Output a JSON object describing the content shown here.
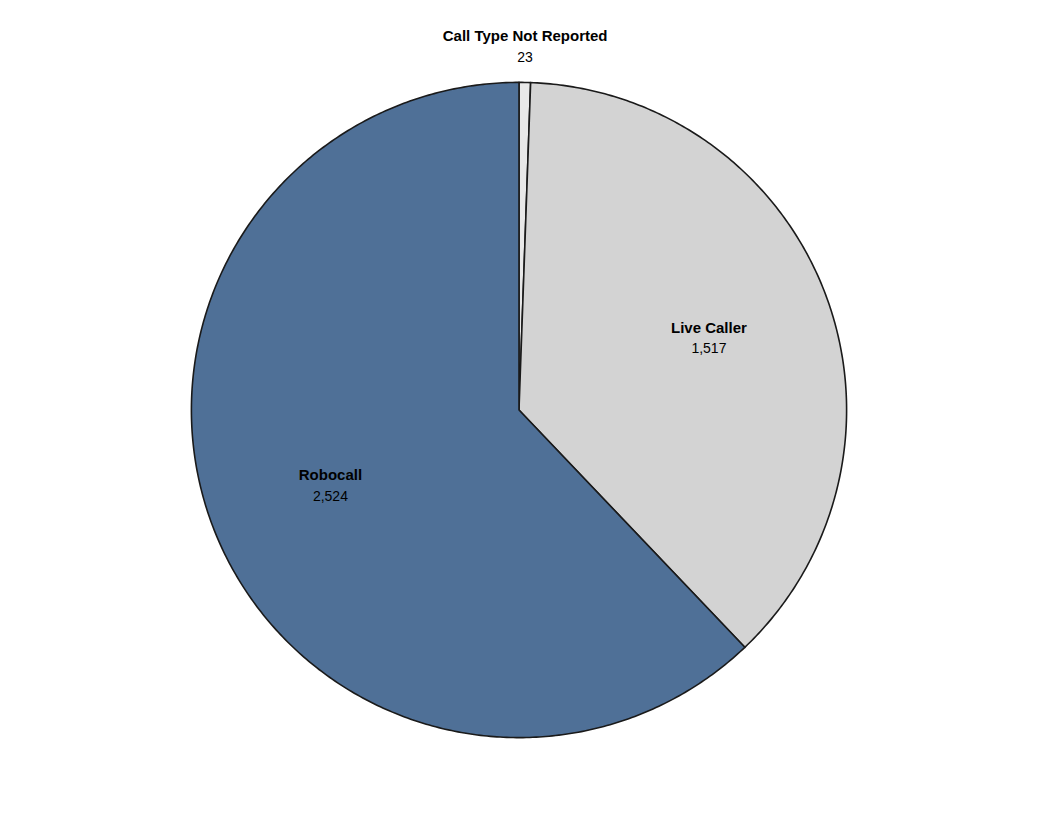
{
  "chart_data": {
    "type": "pie",
    "categories": [
      "Call Type Not Reported",
      "Live Caller",
      "Robocall"
    ],
    "values": [
      23,
      1517,
      2524
    ],
    "value_labels": [
      "23",
      "1,517",
      "2,524"
    ],
    "colors": [
      "#e8e8e8",
      "#d3d3d3",
      "#4f7097"
    ],
    "data_labels": true
  }
}
